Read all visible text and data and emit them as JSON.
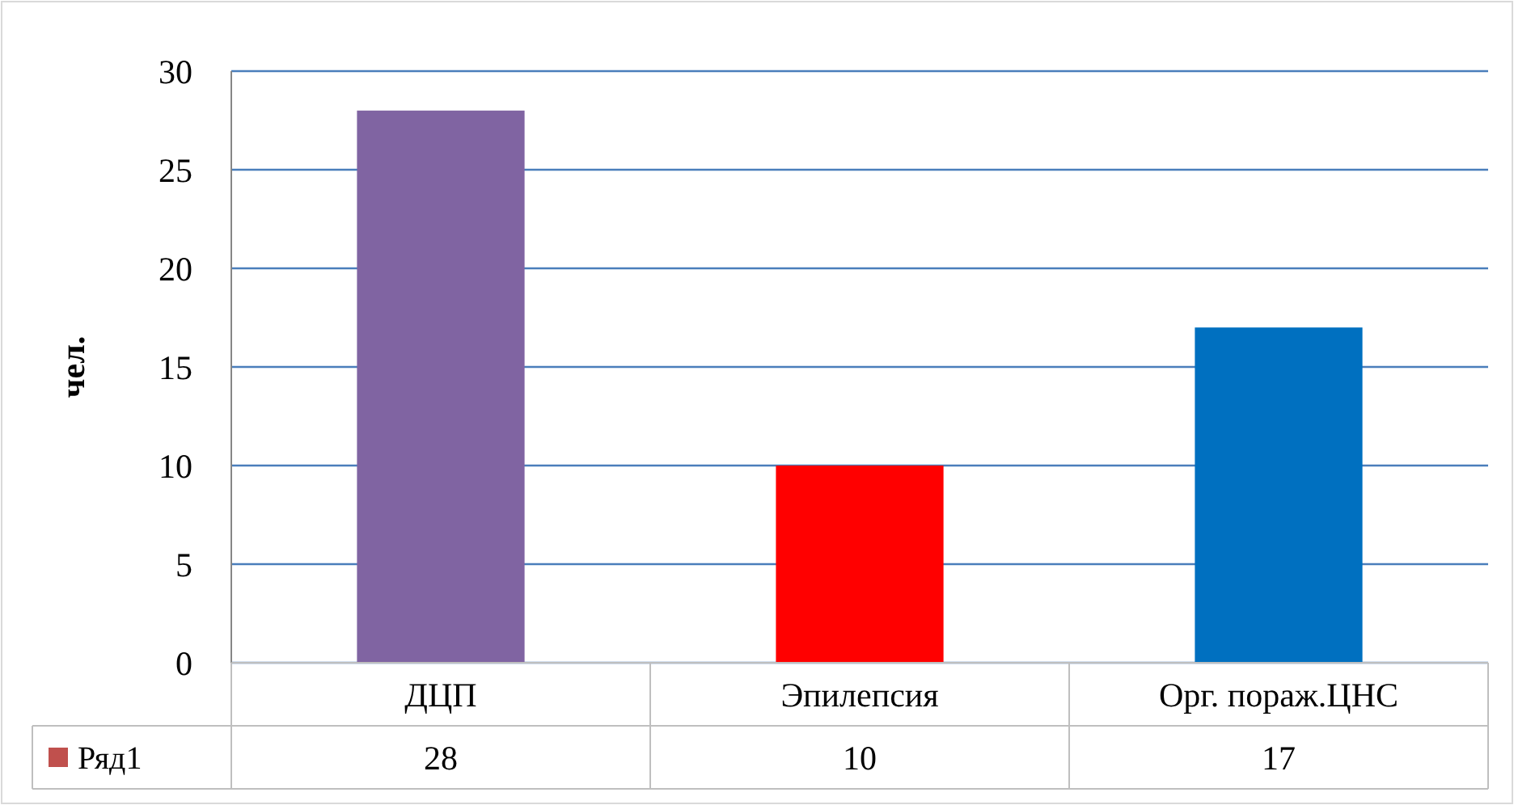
{
  "chart_data": {
    "type": "bar",
    "ylabel": "чел.",
    "categories": [
      "ДЦП",
      "Эпилепсия",
      "Орг. пораж.ЦНС"
    ],
    "series": [
      {
        "name": "Ряд1",
        "color": "#c0504d",
        "colors": [
          "#8064a2",
          "#ff0000",
          "#0070c0"
        ],
        "values": [
          28,
          10,
          17
        ]
      }
    ],
    "ylim": [
      0,
      30
    ],
    "yticks": [
      0,
      5,
      10,
      15,
      20,
      25,
      30
    ],
    "grid": "y",
    "data_labels": true,
    "legend": "bottom"
  }
}
